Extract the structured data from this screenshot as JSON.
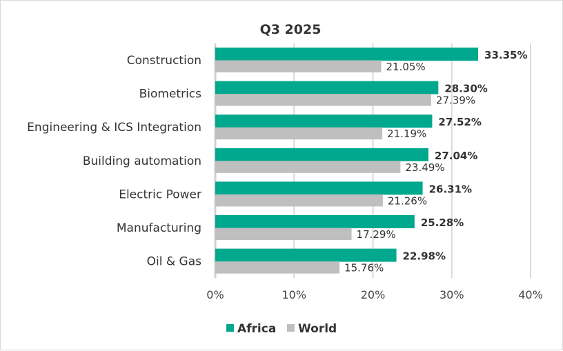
{
  "chart_data": {
    "type": "bar",
    "orientation": "horizontal",
    "title": "Q3 2025",
    "categories": [
      "Construction",
      "Biometrics",
      "Engineering & ICS Integration",
      "Building automation",
      "Electric Power",
      "Manufacturing",
      "Oil & Gas"
    ],
    "series": [
      {
        "name": "Africa",
        "color": "#00A88E",
        "values": [
          33.35,
          28.3,
          27.52,
          27.04,
          26.31,
          25.28,
          22.98
        ],
        "labels": [
          "33.35%",
          "28.30%",
          "27.52%",
          "27.04%",
          "26.31%",
          "25.28%",
          "22.98%"
        ]
      },
      {
        "name": "World",
        "color": "#BFBFBF",
        "values": [
          21.05,
          27.39,
          21.19,
          23.49,
          21.26,
          17.29,
          15.76
        ],
        "labels": [
          "21.05%",
          "27.39%",
          "21.19%",
          "23.49%",
          "21.26%",
          "17.29%",
          "15.76%"
        ]
      }
    ],
    "xlim": [
      0,
      40
    ],
    "xticks": [
      "0%",
      "10%",
      "20%",
      "30%",
      "40%"
    ],
    "grid": true,
    "legend": "bottom"
  }
}
